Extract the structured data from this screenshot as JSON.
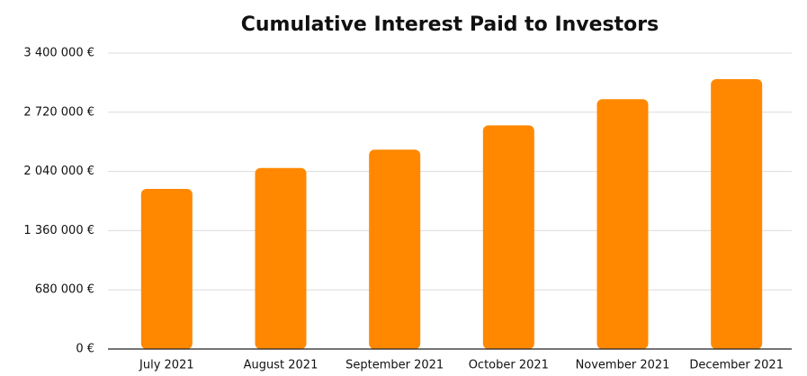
{
  "chart_data": {
    "type": "bar",
    "title": "Cumulative Interest Paid to Investors",
    "categories": [
      "July 2021",
      "August 2021",
      "September 2021",
      "October 2021",
      "November 2021",
      "December 2021"
    ],
    "values": [
      1840000,
      2080000,
      2290000,
      2570000,
      2870000,
      3100000
    ],
    "color": "#ff8800",
    "ylim": [
      0,
      3400000
    ],
    "yticks": [
      {
        "value": 0,
        "label": "0 €"
      },
      {
        "value": 680000,
        "label": "680 000 €"
      },
      {
        "value": 1360000,
        "label": "1 360 000 €"
      },
      {
        "value": 2040000,
        "label": "2 040 000 €"
      },
      {
        "value": 2720000,
        "label": "2 720 000 €"
      },
      {
        "value": 3400000,
        "label": "3 400 000 €"
      }
    ],
    "grid": true
  }
}
